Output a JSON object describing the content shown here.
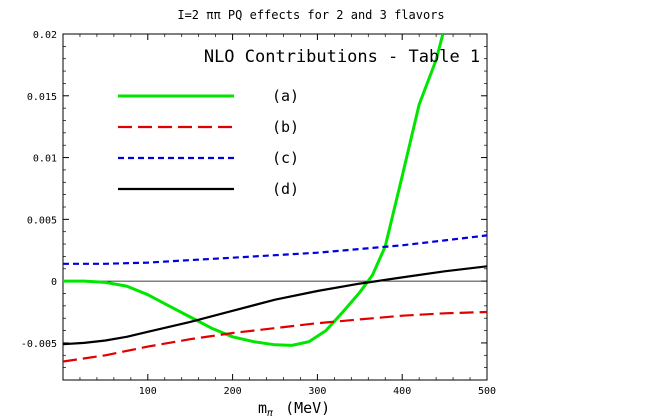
{
  "chart_data": {
    "type": "line",
    "title": "I=2 ππ PQ effects for 2 and 3 flavors",
    "xlabel": "m",
    "xlabel_sub": "π",
    "xlabel_unit": "(MeV)",
    "ylabel": "",
    "xlim": [
      0,
      500
    ],
    "ylim": [
      -0.008,
      0.02
    ],
    "x_ticks": [
      100,
      200,
      300,
      400,
      500
    ],
    "x_tick_labels": [
      "100",
      "200",
      "300",
      "400",
      "500"
    ],
    "y_ticks": [
      -0.005,
      0,
      0.005,
      0.01,
      0.015,
      0.02
    ],
    "y_tick_labels": [
      "-0.005",
      "0",
      "0.005",
      "0.01",
      "0.015",
      "0.02"
    ],
    "grid": false,
    "zero_line": true,
    "legend_title": "NLO Contributions - Table 1",
    "legend_position": "top-left",
    "series": [
      {
        "name": "(a)",
        "color": "#00e600",
        "dash": "solid",
        "x": [
          0,
          25,
          50,
          75,
          100,
          125,
          150,
          175,
          200,
          225,
          250,
          270,
          290,
          310,
          330,
          350,
          365,
          380,
          400,
          420,
          440,
          448
        ],
        "y": [
          0,
          0,
          -0.0001,
          -0.0004,
          -0.0011,
          -0.002,
          -0.0029,
          -0.0038,
          -0.0045,
          -0.0049,
          -0.00515,
          -0.0052,
          -0.0049,
          -0.004,
          -0.0025,
          -0.0009,
          0.0005,
          0.0028,
          0.0085,
          0.0143,
          0.0179,
          0.02
        ]
      },
      {
        "name": "(b)",
        "color": "#e00000",
        "dash": "long",
        "x": [
          0,
          50,
          100,
          150,
          200,
          250,
          300,
          350,
          400,
          450,
          500
        ],
        "y": [
          -0.0065,
          -0.006,
          -0.0053,
          -0.0047,
          -0.0042,
          -0.0038,
          -0.0034,
          -0.0031,
          -0.0028,
          -0.0026,
          -0.0025
        ]
      },
      {
        "name": "(c)",
        "color": "#0000e0",
        "dash": "short",
        "x": [
          0,
          50,
          100,
          150,
          200,
          250,
          300,
          350,
          400,
          450,
          500
        ],
        "y": [
          0.0014,
          0.0014,
          0.0015,
          0.0017,
          0.0019,
          0.0021,
          0.0023,
          0.0026,
          0.0029,
          0.0033,
          0.0037
        ]
      },
      {
        "name": "(d)",
        "color": "#000000",
        "dash": "solid",
        "x": [
          0,
          25,
          50,
          75,
          100,
          150,
          200,
          250,
          300,
          350,
          400,
          450,
          500
        ],
        "y": [
          -0.0051,
          -0.005,
          -0.0048,
          -0.0045,
          -0.0041,
          -0.0033,
          -0.0024,
          -0.0015,
          -0.0008,
          -0.0002,
          0.0003,
          0.0008,
          0.0012
        ]
      }
    ]
  }
}
